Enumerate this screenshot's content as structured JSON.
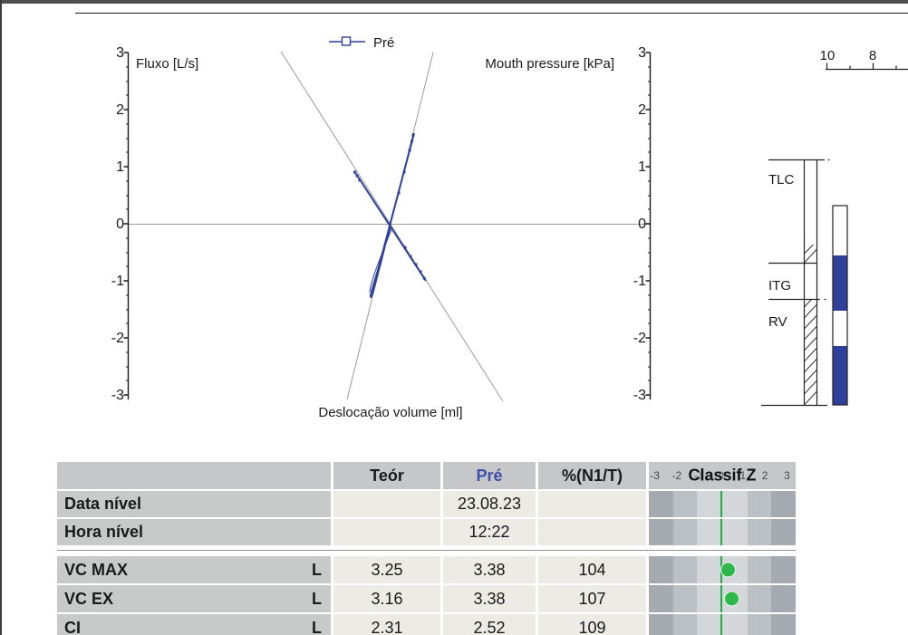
{
  "chart": {
    "legend_label": "Pré",
    "y_left_label": "Fluxo [L/s]",
    "y_right_label": "Mouth pressure [kPa]",
    "x_label": "Deslocação volume [ml]",
    "y_ticks": [
      "3",
      "2",
      "1",
      "0",
      "-1",
      "-2",
      "-3"
    ]
  },
  "chart_data": {
    "type": "line",
    "title": "",
    "description": "Body plethysmography trial: specific resistance loop (flow vs shift volume) and occlusion line (mouth pressure vs shift volume) with fitted gray slope lines",
    "legend": [
      "Pré"
    ],
    "legend_position": "top-center",
    "y_axis_left": {
      "label": "Fluxo [L/s]",
      "range": [
        -3,
        3
      ],
      "major_ticks": [
        3,
        2,
        1,
        0,
        -1,
        -2,
        -3
      ]
    },
    "y_axis_right": {
      "label": "Mouth pressure [kPa]",
      "range": [
        -3,
        3
      ],
      "major_ticks": [
        3,
        2,
        1,
        0,
        -1,
        -2,
        -3
      ]
    },
    "x_axis": {
      "label": "Deslocação volume [ml]",
      "tick_labels_visible": false
    },
    "grid": false,
    "series": [
      {
        "name": "Pré resistance loop",
        "color": "#2f3f9c",
        "approx_flow_extent": [
          -1.3,
          1.6
        ]
      },
      {
        "name": "Pré occlusion (ITGV) line",
        "color": "#2f3f9c",
        "approx_pressure_extent": [
          -1.0,
          0.95
        ]
      }
    ]
  },
  "volume_indicator": {
    "ruler_labels": [
      "10",
      "8"
    ],
    "ruler_major_ticks": [
      10,
      8
    ],
    "ruler_minor_ticks": [
      9,
      7
    ],
    "tlc_label": "TLC",
    "itg_label": "ITG",
    "rv_label": "RV"
  },
  "table": {
    "header": {
      "param": "",
      "teor": "Teór",
      "pre": "Pré",
      "pct": "%(N1/T)",
      "classif": "Classif Z"
    },
    "z_scale": [
      "-3",
      "-2",
      "-1",
      "0",
      "1",
      "2",
      "3"
    ],
    "rows": [
      {
        "label": "Data nível",
        "unit": "",
        "teor": "",
        "pre": "23.08.23",
        "pct": "",
        "z": null
      },
      {
        "label": "Hora nível",
        "unit": "",
        "teor": "",
        "pre": "12:22",
        "pct": "",
        "z": null
      },
      {
        "label": "VC MAX",
        "unit": "L",
        "teor": "3.25",
        "pre": "3.38",
        "pct": "104",
        "z": 0.29
      },
      {
        "label": "VC EX",
        "unit": "L",
        "teor": "3.16",
        "pre": "3.38",
        "pct": "107",
        "z": 0.45
      },
      {
        "label": "CI",
        "unit": "L",
        "teor": "2.31",
        "pre": "2.52",
        "pct": "109",
        "z": null
      }
    ]
  },
  "colors": {
    "trace_blue": "#2f3f9c",
    "pre_header_blue": "#3c4fa5",
    "reference_gray": "#9a9a9a",
    "table_header_bg": "#c6c7c9",
    "table_label_bg": "#c7cac9",
    "table_value_bg": "#edebe5",
    "z_band_dark": "#a5aab0",
    "z_band_medium": "#bbc0c5",
    "z_band_light": "#d4d7da",
    "z_center_green": "#1db04a",
    "z_dot_green": "#2eb84c"
  }
}
